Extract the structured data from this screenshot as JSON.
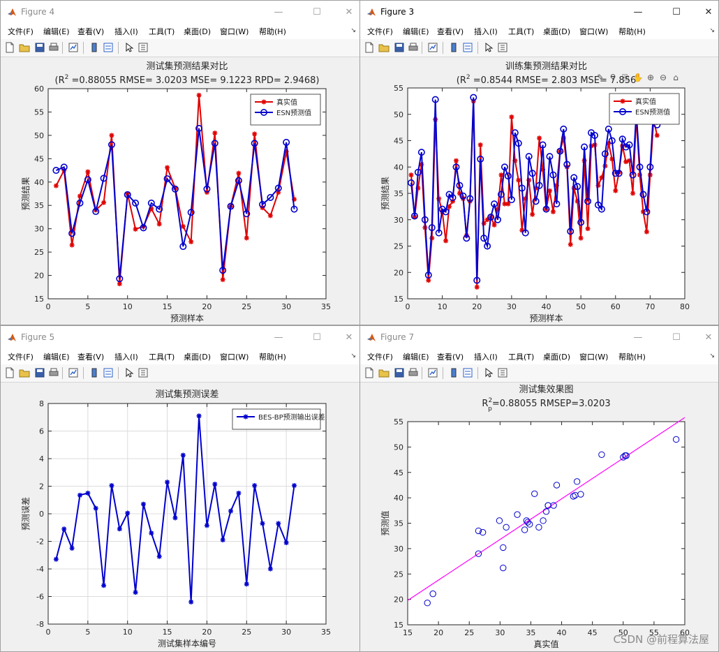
{
  "menu_labels": [
    "文件(F)",
    "编辑(E)",
    "查看(V)",
    "插入(I)",
    "工具(T)",
    "桌面(D)",
    "窗口(W)",
    "帮助(H)"
  ],
  "window_controls": {
    "minimize": "—",
    "maximize": "☐",
    "close": "✕"
  },
  "toolbar_icons": [
    "new-figure-icon",
    "open-file-icon",
    "save-icon",
    "print-icon",
    "link-plot-icon",
    "colorbar-icon",
    "legend-icon",
    "pointer-icon",
    "property-editor-icon"
  ],
  "axes_toolbar_icons": [
    "brush-icon",
    "data-tips-icon",
    "export-icon",
    "pan-icon",
    "zoom-in-icon",
    "zoom-out-icon",
    "home-icon"
  ],
  "colors": {
    "red": "#e00000",
    "blue": "#0000cc",
    "magenta": "#ff00ff",
    "grid": "#dcdcdc"
  },
  "watermark": "CSDN @前程算法屋",
  "windows": [
    {
      "id": "fig4",
      "title": "Figure 4",
      "active": false,
      "chart_data": {
        "type": "line",
        "title": "测试集预测结果对比",
        "subtitle_prefix": "(R",
        "subtitle_sup": "2",
        "subtitle_rest": " =0.88055 RMSE= 3.0203 MSE= 9.1223 RPD= 2.9468)",
        "xlabel": "预测样本",
        "ylabel": "预测结果",
        "xlim": [
          0,
          35
        ],
        "ylim": [
          15,
          60
        ],
        "xticks": [
          0,
          5,
          10,
          15,
          20,
          25,
          30,
          35
        ],
        "yticks": [
          15,
          20,
          25,
          30,
          35,
          40,
          45,
          50,
          55,
          60
        ],
        "x": [
          1,
          2,
          3,
          4,
          5,
          6,
          7,
          8,
          9,
          10,
          11,
          12,
          13,
          14,
          15,
          16,
          17,
          18,
          19,
          20,
          21,
          22,
          23,
          24,
          25,
          26,
          27,
          28,
          29,
          30,
          31
        ],
        "series": [
          {
            "name": "真实值",
            "color": "#e00000",
            "marker": "star",
            "values": [
              39.2,
              42.5,
              26.5,
              37.0,
              42.2,
              34.0,
              35.6,
              50.0,
              18.2,
              37.5,
              29.9,
              30.5,
              34.3,
              31.0,
              43.1,
              38.7,
              30.5,
              27.2,
              58.6,
              37.8,
              50.5,
              19.1,
              34.8,
              41.9,
              28.0,
              50.3,
              34.5,
              32.8,
              37.8,
              46.5,
              36.3
            ]
          },
          {
            "name": "ESN预测值",
            "color": "#0000cc",
            "marker": "circle",
            "values": [
              42.5,
              43.2,
              29.0,
              35.5,
              40.5,
              33.7,
              40.8,
              48.0,
              19.3,
              37.3,
              35.5,
              30.2,
              35.5,
              34.2,
              40.7,
              38.5,
              26.2,
              33.5,
              51.5,
              38.5,
              48.3,
              21.1,
              34.8,
              40.3,
              33.2,
              48.3,
              35.2,
              36.7,
              38.7,
              48.5,
              34.2
            ]
          }
        ],
        "legend": "top-right"
      }
    },
    {
      "id": "fig3",
      "title": "Figure 3",
      "active": true,
      "chart_data": {
        "type": "line",
        "title": "训练集预测结果对比",
        "subtitle_prefix": "(R",
        "subtitle_sup": "2",
        "subtitle_rest": " =0.8544 RMSE= 2.803 MSE= 7.856",
        "xlabel": "预测样本",
        "ylabel": "预测结果",
        "xlim": [
          0,
          80
        ],
        "ylim": [
          15,
          55
        ],
        "xticks": [
          0,
          10,
          20,
          30,
          40,
          50,
          60,
          70,
          80
        ],
        "yticks": [
          15,
          20,
          25,
          30,
          35,
          40,
          45,
          50,
          55
        ],
        "x": [
          1,
          2,
          3,
          4,
          5,
          6,
          7,
          8,
          9,
          10,
          11,
          12,
          13,
          14,
          15,
          16,
          17,
          18,
          19,
          20,
          21,
          22,
          23,
          24,
          25,
          26,
          27,
          28,
          29,
          30,
          31,
          32,
          33,
          34,
          35,
          36,
          37,
          38,
          39,
          40,
          41,
          42,
          43,
          44,
          45,
          46,
          47,
          48,
          49,
          50,
          51,
          52,
          53,
          54,
          55,
          56,
          57,
          58,
          59,
          60,
          61,
          62,
          63,
          64,
          65,
          66,
          67,
          68,
          69,
          70,
          71,
          72
        ],
        "series": [
          {
            "name": "真实值",
            "color": "#e00000",
            "marker": "star",
            "values": [
              38.5,
              30.5,
              36.0,
              40.5,
              28.5,
              18.5,
              26.5,
              49.0,
              34.0,
              31.5,
              26.0,
              32.5,
              33.5,
              41.2,
              35.0,
              34.0,
              27.0,
              33.5,
              52.5,
              17.2,
              44.2,
              29.3,
              30.0,
              30.5,
              29.0,
              32.0,
              38.5,
              33.0,
              33.0,
              49.5,
              41.2,
              37.5,
              28.0,
              34.0,
              37.5,
              31.0,
              36.0,
              45.5,
              39.5,
              32.0,
              35.5,
              31.5,
              36.5,
              43.0,
              45.5,
              40.0,
              25.3,
              36.0,
              33.5,
              26.5,
              41.2,
              28.3,
              44.0,
              44.2,
              36.5,
              38.0,
              40.2,
              44.5,
              41.5,
              35.5,
              39.0,
              44.0,
              41.0,
              41.2,
              35.0,
              49.5,
              38.5,
              31.5,
              27.7,
              38.5,
              49.0,
              46.0
            ]
          },
          {
            "name": "ESN预测值",
            "color": "#0000cc",
            "marker": "circle",
            "values": [
              37.0,
              30.7,
              39.0,
              42.8,
              30.0,
              19.5,
              28.5,
              52.8,
              27.5,
              32.0,
              31.5,
              34.8,
              34.2,
              40.0,
              36.5,
              34.5,
              26.5,
              34.0,
              53.2,
              18.5,
              41.5,
              26.5,
              25.0,
              30.5,
              33.0,
              30.0,
              34.8,
              40.0,
              38.3,
              33.8,
              46.5,
              44.5,
              36.0,
              27.5,
              42.0,
              38.8,
              33.5,
              36.5,
              44.2,
              32.0,
              42.0,
              38.5,
              33.0,
              43.0,
              47.2,
              40.5,
              27.8,
              38.0,
              36.3,
              29.5,
              43.8,
              33.5,
              46.5,
              46.0,
              32.8,
              32.0,
              42.5,
              47.2,
              45.0,
              38.8,
              38.8,
              45.3,
              43.8,
              44.2,
              38.5,
              50.5,
              40.0,
              34.8,
              31.5,
              40.0,
              51.0,
              48.0
            ]
          }
        ],
        "legend": "top-right"
      }
    },
    {
      "id": "fig5",
      "title": "Figure 5",
      "active": false,
      "chart_data": {
        "type": "line",
        "title": "测试集预测误差",
        "xlabel": "测试集样本编号",
        "ylabel": "预测误差",
        "xlim": [
          0,
          35
        ],
        "ylim": [
          -8,
          8
        ],
        "xticks": [
          0,
          5,
          10,
          15,
          20,
          25,
          30,
          35
        ],
        "yticks": [
          -8,
          -6,
          -4,
          -2,
          0,
          2,
          4,
          6,
          8
        ],
        "grid": true,
        "x": [
          1,
          2,
          3,
          4,
          5,
          6,
          7,
          8,
          9,
          10,
          11,
          12,
          13,
          14,
          15,
          16,
          17,
          18,
          19,
          20,
          21,
          22,
          23,
          24,
          25,
          26,
          27,
          28,
          29,
          30,
          31
        ],
        "series": [
          {
            "name": "BES-BP预测输出误差",
            "color": "#0000cc",
            "marker": "star",
            "values": [
              -3.3,
              -1.1,
              -2.5,
              1.35,
              1.5,
              0.4,
              -5.2,
              2.05,
              -1.1,
              0.05,
              -5.7,
              0.7,
              -1.4,
              -3.1,
              2.3,
              -0.3,
              4.25,
              -6.4,
              7.1,
              -0.85,
              2.15,
              -1.9,
              0.2,
              1.5,
              -5.1,
              2.05,
              -0.7,
              -4.0,
              -0.7,
              -2.1,
              2.05
            ]
          }
        ],
        "legend": "top-right"
      }
    },
    {
      "id": "fig7",
      "title": "Figure 7",
      "active": false,
      "chart_data": {
        "type": "scatter",
        "title": "测试集效果图",
        "subtitle_prefix": "R",
        "subtitle_sup": "2",
        "subtitle_sub": "p",
        "subtitle_rest": "=0.88055  RMSEP=3.0203",
        "xlabel": "真实值",
        "ylabel": "预测值",
        "xlim": [
          15,
          60
        ],
        "ylim": [
          15,
          55
        ],
        "xticks": [
          15,
          20,
          25,
          30,
          35,
          40,
          45,
          50,
          55,
          60
        ],
        "yticks": [
          15,
          20,
          25,
          30,
          35,
          40,
          45,
          50,
          55
        ],
        "points": [
          [
            18.2,
            19.3
          ],
          [
            19.1,
            21.1
          ],
          [
            26.5,
            29.0
          ],
          [
            26.5,
            33.5
          ],
          [
            27.2,
            33.2
          ],
          [
            29.9,
            35.5
          ],
          [
            30.5,
            26.2
          ],
          [
            30.5,
            30.2
          ],
          [
            31.0,
            34.2
          ],
          [
            32.8,
            36.7
          ],
          [
            34.0,
            33.7
          ],
          [
            34.3,
            35.5
          ],
          [
            34.5,
            35.2
          ],
          [
            34.8,
            34.8
          ],
          [
            35.6,
            40.8
          ],
          [
            36.3,
            34.2
          ],
          [
            37.0,
            35.5
          ],
          [
            37.5,
            37.3
          ],
          [
            37.8,
            38.5
          ],
          [
            37.8,
            38.5
          ],
          [
            38.7,
            38.5
          ],
          [
            39.2,
            42.5
          ],
          [
            41.9,
            40.3
          ],
          [
            42.2,
            40.5
          ],
          [
            42.5,
            43.2
          ],
          [
            43.1,
            40.7
          ],
          [
            46.5,
            48.5
          ],
          [
            50.0,
            48.0
          ],
          [
            50.3,
            48.3
          ],
          [
            50.5,
            48.3
          ],
          [
            58.6,
            51.5
          ]
        ],
        "fit_line": {
          "x": [
            15,
            60
          ],
          "y": [
            19.8,
            55.8
          ]
        },
        "marker_color": "#0000cc",
        "line_color": "#ff00ff"
      }
    }
  ]
}
